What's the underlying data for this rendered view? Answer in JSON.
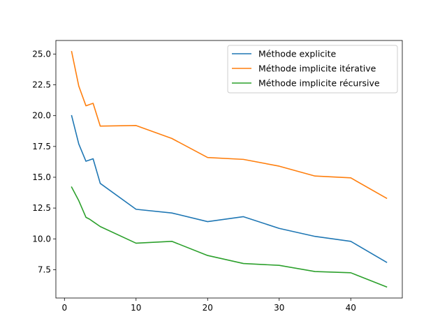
{
  "chart_data": {
    "type": "line",
    "title": "",
    "xlabel": "",
    "ylabel": "",
    "xlim": [
      -1.2,
      47.2
    ],
    "ylim": [
      5.2,
      26.1
    ],
    "xticks": [
      0,
      10,
      20,
      30,
      40
    ],
    "xtick_labels": [
      "0",
      "10",
      "20",
      "30",
      "40"
    ],
    "yticks": [
      7.5,
      10.0,
      12.5,
      15.0,
      17.5,
      20.0,
      22.5,
      25.0
    ],
    "ytick_labels": [
      "7.5",
      "10.0",
      "12.5",
      "15.0",
      "17.5",
      "20.0",
      "22.5",
      "25.0"
    ],
    "grid": false,
    "legend_position": "top-right",
    "series": [
      {
        "name": "Méthode explicite",
        "color": "#1f77b4",
        "x": [
          1,
          2,
          3,
          4,
          5,
          10,
          15,
          20,
          25,
          30,
          35,
          40,
          45
        ],
        "y": [
          20.0,
          17.7,
          16.3,
          16.5,
          14.5,
          12.4,
          12.1,
          11.4,
          11.8,
          10.85,
          10.2,
          9.8,
          8.1
        ]
      },
      {
        "name": "Méthode implicite itérative",
        "color": "#ff7f0e",
        "x": [
          1,
          2,
          3,
          4,
          5,
          10,
          15,
          20,
          25,
          30,
          35,
          40,
          45
        ],
        "y": [
          25.2,
          22.4,
          20.8,
          21.0,
          19.15,
          19.2,
          18.15,
          16.6,
          16.45,
          15.9,
          15.1,
          14.95,
          13.3
        ]
      },
      {
        "name": "Méthode implicite récursive",
        "color": "#2ca02c",
        "x": [
          1,
          2,
          3,
          3.5,
          4,
          5,
          10,
          15,
          20,
          25,
          30,
          35,
          40,
          45
        ],
        "y": [
          14.2,
          13.1,
          11.75,
          11.6,
          11.4,
          11.0,
          9.65,
          9.8,
          8.65,
          8.0,
          7.85,
          7.35,
          7.25,
          6.1
        ]
      }
    ]
  }
}
